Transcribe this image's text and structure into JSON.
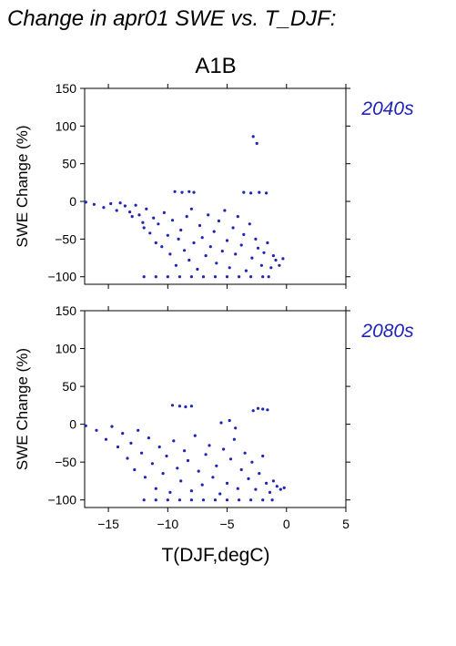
{
  "figure": {
    "title": "Change in apr01 SWE vs. T_DJF:",
    "scenario": "A1B",
    "xlabel": "T(DJF,degC)",
    "point_color": "#1f24b4"
  },
  "chart_data": [
    {
      "type": "scatter",
      "panel_label": "2040s",
      "xlabel": "",
      "ylabel": "SWE Change (%)",
      "xlim": [
        -17,
        5
      ],
      "ylim": [
        -110,
        150
      ],
      "xticks": [
        -15,
        -10,
        -5,
        0,
        5
      ],
      "yticks": [
        -100,
        -50,
        0,
        50,
        100,
        150
      ],
      "ytick_labels": [
        "−100",
        "−50",
        "0",
        "50",
        "100",
        "150"
      ],
      "series": [
        {
          "points": [
            [
              -16.9,
              -1
            ],
            [
              -16.2,
              -4
            ],
            [
              -15.4,
              -8
            ],
            [
              -14.8,
              -3
            ],
            [
              -14.3,
              -12
            ],
            [
              -14.0,
              -2
            ],
            [
              -13.6,
              -6
            ],
            [
              -13.2,
              -14
            ],
            [
              -13.0,
              -20
            ],
            [
              -12.7,
              -5
            ],
            [
              -12.4,
              -18
            ],
            [
              -12.1,
              -28
            ],
            [
              -12.0,
              -35
            ],
            [
              -11.8,
              -10
            ],
            [
              -11.5,
              -42
            ],
            [
              -11.2,
              -22
            ],
            [
              -11.0,
              -55
            ],
            [
              -10.8,
              -30
            ],
            [
              -10.5,
              -60
            ],
            [
              -10.3,
              -15
            ],
            [
              -10.0,
              -45
            ],
            [
              -9.8,
              -70
            ],
            [
              -9.6,
              -25
            ],
            [
              -9.3,
              -85
            ],
            [
              -9.1,
              -50
            ],
            [
              -8.9,
              -38
            ],
            [
              -8.6,
              -65
            ],
            [
              -8.4,
              -20
            ],
            [
              -8.2,
              -78
            ],
            [
              -8.0,
              -10
            ],
            [
              -7.8,
              -55
            ],
            [
              -7.5,
              -90
            ],
            [
              -7.3,
              -32
            ],
            [
              -7.1,
              -48
            ],
            [
              -6.8,
              -72
            ],
            [
              -6.6,
              -18
            ],
            [
              -6.4,
              -60
            ],
            [
              -6.1,
              -40
            ],
            [
              -5.9,
              -82
            ],
            [
              -5.7,
              -26
            ],
            [
              -5.4,
              -66
            ],
            [
              -5.2,
              -12
            ],
            [
              -5.0,
              -52
            ],
            [
              -4.8,
              -88
            ],
            [
              -4.5,
              -35
            ],
            [
              -4.3,
              -70
            ],
            [
              -4.1,
              -20
            ],
            [
              -3.8,
              -58
            ],
            [
              -3.6,
              -44
            ],
            [
              -3.4,
              -92
            ],
            [
              -3.1,
              -30
            ],
            [
              -2.9,
              -75
            ],
            [
              -2.6,
              -50
            ],
            [
              -2.4,
              -62
            ],
            [
              -2.1,
              -85
            ],
            [
              -1.9,
              -68
            ],
            [
              -1.6,
              -55
            ],
            [
              -1.3,
              -88
            ],
            [
              -1.1,
              -72
            ],
            [
              -0.9,
              -78
            ],
            [
              -0.6,
              -85
            ],
            [
              -0.3,
              -76
            ],
            [
              -2.8,
              86
            ],
            [
              -2.5,
              77
            ],
            [
              -9.4,
              13
            ],
            [
              -8.8,
              12
            ],
            [
              -8.2,
              13
            ],
            [
              -7.8,
              12
            ],
            [
              -3.6,
              12
            ],
            [
              -3.0,
              11
            ],
            [
              -2.3,
              12
            ],
            [
              -1.7,
              11
            ],
            [
              -12.0,
              -100
            ],
            [
              -11.0,
              -100
            ],
            [
              -10.0,
              -100
            ],
            [
              -9.0,
              -100
            ],
            [
              -8.0,
              -100
            ],
            [
              -7.0,
              -100
            ],
            [
              -6.0,
              -100
            ],
            [
              -5.0,
              -100
            ],
            [
              -4.0,
              -100
            ],
            [
              -3.0,
              -100
            ],
            [
              -2.0,
              -100
            ],
            [
              -1.5,
              -100
            ]
          ]
        }
      ]
    },
    {
      "type": "scatter",
      "panel_label": "2080s",
      "xlabel": "T(DJF,degC)",
      "ylabel": "SWE Change (%)",
      "xlim": [
        -17,
        5
      ],
      "ylim": [
        -110,
        150
      ],
      "xticks": [
        -15,
        -10,
        -5,
        0,
        5
      ],
      "xtick_labels": [
        "−15",
        "−10",
        "−5",
        "0",
        "5"
      ],
      "yticks": [
        -100,
        -50,
        0,
        50,
        100,
        150
      ],
      "ytick_labels": [
        "−100",
        "−50",
        "0",
        "50",
        "100",
        "150"
      ],
      "series": [
        {
          "points": [
            [
              -16.9,
              -2
            ],
            [
              -16.0,
              -8
            ],
            [
              -15.2,
              -20
            ],
            [
              -14.7,
              -3
            ],
            [
              -14.2,
              -30
            ],
            [
              -13.8,
              -12
            ],
            [
              -13.4,
              -45
            ],
            [
              -13.1,
              -25
            ],
            [
              -12.8,
              -60
            ],
            [
              -12.5,
              -8
            ],
            [
              -12.2,
              -38
            ],
            [
              -11.9,
              -70
            ],
            [
              -11.6,
              -18
            ],
            [
              -11.3,
              -52
            ],
            [
              -11.0,
              -85
            ],
            [
              -10.7,
              -30
            ],
            [
              -10.4,
              -65
            ],
            [
              -10.1,
              -42
            ],
            [
              -9.8,
              -90
            ],
            [
              -9.5,
              -22
            ],
            [
              -9.2,
              -58
            ],
            [
              -8.9,
              -75
            ],
            [
              -8.6,
              -35
            ],
            [
              -8.3,
              -48
            ],
            [
              -8.0,
              -88
            ],
            [
              -7.7,
              -15
            ],
            [
              -7.4,
              -62
            ],
            [
              -7.1,
              -80
            ],
            [
              -6.8,
              -40
            ],
            [
              -6.5,
              -28
            ],
            [
              -6.2,
              -70
            ],
            [
              -5.9,
              -55
            ],
            [
              -5.6,
              -92
            ],
            [
              -5.3,
              -33
            ],
            [
              -5.0,
              -78
            ],
            [
              -4.7,
              -46
            ],
            [
              -4.4,
              -20
            ],
            [
              -4.1,
              -85
            ],
            [
              -3.8,
              -60
            ],
            [
              -3.5,
              -38
            ],
            [
              -3.2,
              -72
            ],
            [
              -2.9,
              -50
            ],
            [
              -2.6,
              -86
            ],
            [
              -2.3,
              -65
            ],
            [
              -2.0,
              -42
            ],
            [
              -1.7,
              -78
            ],
            [
              -1.4,
              -90
            ],
            [
              -1.1,
              -75
            ],
            [
              -0.8,
              -82
            ],
            [
              -0.5,
              -86
            ],
            [
              -0.2,
              -84
            ],
            [
              -5.5,
              2
            ],
            [
              -4.8,
              5
            ],
            [
              -4.3,
              -5
            ],
            [
              -9.6,
              25
            ],
            [
              -9.0,
              24
            ],
            [
              -8.5,
              23
            ],
            [
              -8.0,
              24
            ],
            [
              -2.8,
              18
            ],
            [
              -2.4,
              21
            ],
            [
              -2.0,
              20
            ],
            [
              -1.6,
              19
            ],
            [
              -12.0,
              -100
            ],
            [
              -11.0,
              -100
            ],
            [
              -10.0,
              -100
            ],
            [
              -9.0,
              -100
            ],
            [
              -8.0,
              -100
            ],
            [
              -7.0,
              -100
            ],
            [
              -6.0,
              -100
            ],
            [
              -5.0,
              -100
            ],
            [
              -4.0,
              -100
            ],
            [
              -3.0,
              -100
            ],
            [
              -2.0,
              -100
            ],
            [
              -1.2,
              -100
            ]
          ]
        }
      ]
    }
  ]
}
